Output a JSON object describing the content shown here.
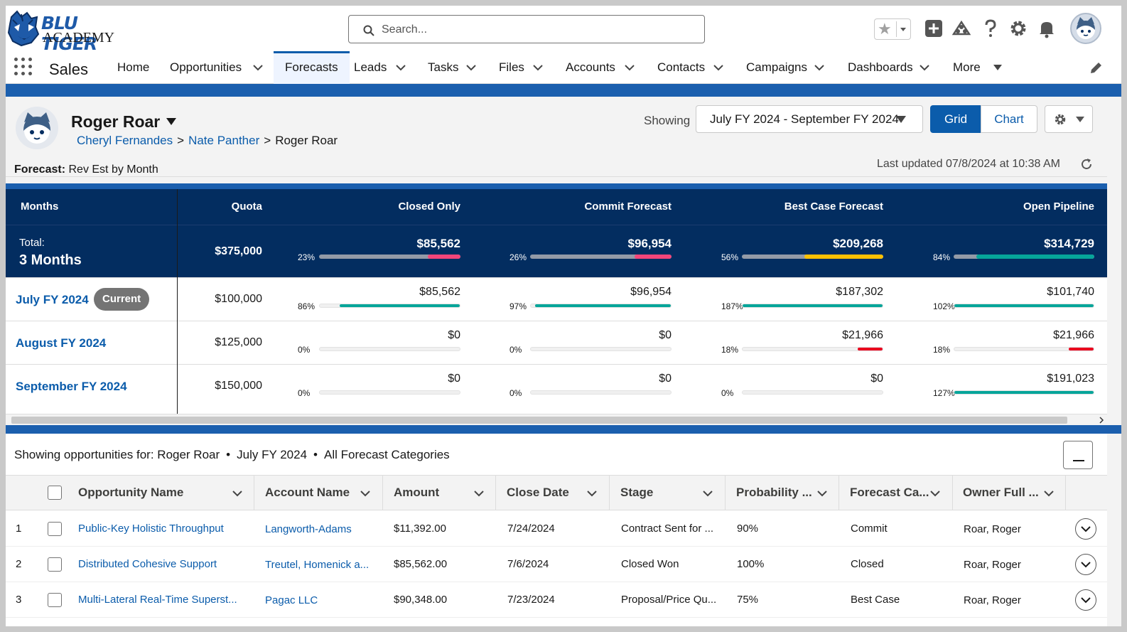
{
  "brand": {
    "line1": "BLU TIGER",
    "line2": "ACADEMY"
  },
  "search": {
    "placeholder": "Search..."
  },
  "nav": {
    "app_name": "Sales",
    "items": [
      {
        "label": "Home"
      },
      {
        "label": "Opportunities"
      },
      {
        "label": "Forecasts"
      },
      {
        "label": "Leads"
      },
      {
        "label": "Tasks"
      },
      {
        "label": "Files"
      },
      {
        "label": "Accounts"
      },
      {
        "label": "Contacts"
      },
      {
        "label": "Campaigns"
      },
      {
        "label": "Dashboards"
      },
      {
        "label": "More"
      }
    ]
  },
  "forecast_header": {
    "user_name": "Roger Roar",
    "breadcrumb": [
      "Cheryl Fernandes",
      "Nate Panther",
      "Roger Roar"
    ],
    "breadcrumb_sep": ">",
    "forecast_label": "Forecast:",
    "forecast_value": "Rev Est by Month",
    "showing_label": "Showing",
    "range": "July FY 2024 - September FY 2024",
    "grid_button": "Grid",
    "chart_button": "Chart",
    "last_updated": "Last updated 07/8/2024 at 10:38 AM"
  },
  "grid": {
    "columns": [
      "Months",
      "Quota",
      "Closed Only",
      "Commit Forecast",
      "Best Case Forecast",
      "Open Pipeline"
    ],
    "total": {
      "label": "Total:",
      "period": "3 Months",
      "quota": "$375,000",
      "cells": [
        {
          "amount": "$85,562",
          "pct": "23%",
          "fill": 0.23,
          "color": "#f4457a"
        },
        {
          "amount": "$96,954",
          "pct": "26%",
          "fill": 0.26,
          "color": "#f4457a"
        },
        {
          "amount": "$209,268",
          "pct": "56%",
          "fill": 0.56,
          "color": "#fcc003"
        },
        {
          "amount": "$314,729",
          "pct": "84%",
          "fill": 0.84,
          "color": "#06a59a"
        }
      ]
    },
    "rows": [
      {
        "month": "July FY 2024",
        "badge": "Current",
        "quota": "$100,000",
        "cells": [
          {
            "amount": "$85,562",
            "pct": "86%",
            "fill": 0.86,
            "color": "#06a59a"
          },
          {
            "amount": "$96,954",
            "pct": "97%",
            "fill": 0.97,
            "color": "#06a59a"
          },
          {
            "amount": "$187,302",
            "pct": "187%",
            "fill": 1.0,
            "color": "#06a59a"
          },
          {
            "amount": "$101,740",
            "pct": "102%",
            "fill": 1.0,
            "color": "#06a59a"
          }
        ]
      },
      {
        "month": "August FY 2024",
        "badge": "",
        "quota": "$125,000",
        "cells": [
          {
            "amount": "$0",
            "pct": "0%",
            "fill": 0,
            "color": "#06a59a"
          },
          {
            "amount": "$0",
            "pct": "0%",
            "fill": 0,
            "color": "#06a59a"
          },
          {
            "amount": "$21,966",
            "pct": "18%",
            "fill": 0.18,
            "color": "#ea001e"
          },
          {
            "amount": "$21,966",
            "pct": "18%",
            "fill": 0.18,
            "color": "#ea001e"
          }
        ]
      },
      {
        "month": "September FY 2024",
        "badge": "",
        "quota": "$150,000",
        "cells": [
          {
            "amount": "$0",
            "pct": "0%",
            "fill": 0,
            "color": "#06a59a"
          },
          {
            "amount": "$0",
            "pct": "0%",
            "fill": 0,
            "color": "#06a59a"
          },
          {
            "amount": "$0",
            "pct": "0%",
            "fill": 0,
            "color": "#06a59a"
          },
          {
            "amount": "$191,023",
            "pct": "127%",
            "fill": 1.0,
            "color": "#06a59a"
          }
        ]
      }
    ]
  },
  "opportunities": {
    "showing_prefix": "Showing opportunities for: Roger Roar",
    "period": "July FY 2024",
    "categories": "All Forecast Categories",
    "dot": "•",
    "columns": [
      "Opportunity Name",
      "Account Name",
      "Amount",
      "Close Date",
      "Stage",
      "Probability ...",
      "Forecast Ca...",
      "Owner Full ..."
    ],
    "rows": [
      {
        "num": "1",
        "name": "Public-Key Holistic Throughput",
        "account": "Langworth-Adams",
        "amount": "$11,392.00",
        "close": "7/24/2024",
        "stage": "Contract Sent for ...",
        "prob": "90%",
        "category": "Commit",
        "owner": "Roar, Roger"
      },
      {
        "num": "2",
        "name": "Distributed Cohesive Support",
        "account": "Treutel, Homenick a...",
        "amount": "$85,562.00",
        "close": "7/6/2024",
        "stage": "Closed Won",
        "prob": "100%",
        "category": "Closed",
        "owner": "Roar, Roger"
      },
      {
        "num": "3",
        "name": "Multi-Lateral Real-Time Superst...",
        "account": "Pagac LLC",
        "amount": "$90,348.00",
        "close": "7/23/2024",
        "stage": "Proposal/Price Qu...",
        "prob": "75%",
        "category": "Best Case",
        "owner": "Roar, Roger"
      }
    ]
  }
}
